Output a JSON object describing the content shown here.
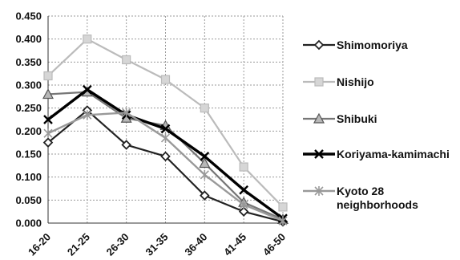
{
  "chart_data": {
    "type": "line",
    "title": "",
    "xlabel": "",
    "ylabel": "",
    "categories": [
      "16-20",
      "21-25",
      "26-30",
      "31-35",
      "36-40",
      "41-45",
      "46-50"
    ],
    "ylim": [
      0,
      0.45
    ],
    "y_ticks": [
      "0.000",
      "0.050",
      "0.100",
      "0.150",
      "0.200",
      "0.250",
      "0.300",
      "0.350",
      "0.400",
      "0.450"
    ],
    "grid": true,
    "legend_placement": "right",
    "series": [
      {
        "name": "Shimomoriya",
        "values": [
          0.175,
          0.245,
          0.17,
          0.145,
          0.06,
          0.025,
          0.003
        ],
        "color": "#222222",
        "marker": "diamond"
      },
      {
        "name": "Nishijo",
        "values": [
          0.32,
          0.4,
          0.355,
          0.312,
          0.25,
          0.122,
          0.035
        ],
        "color": "#bbbbbb",
        "marker": "square"
      },
      {
        "name": "Shibuki",
        "values": [
          0.28,
          0.285,
          0.228,
          0.212,
          0.13,
          0.045,
          0.008
        ],
        "color": "#777777",
        "marker": "triangle"
      },
      {
        "name": "Koriyama-kamimachi",
        "values": [
          0.225,
          0.29,
          0.235,
          0.205,
          0.145,
          0.072,
          0.01
        ],
        "color": "#000000",
        "marker": "x"
      },
      {
        "name": "Kyoto 28 neighborhoods",
        "values": [
          0.195,
          0.235,
          0.24,
          0.185,
          0.105,
          0.04,
          0.005
        ],
        "color": "#999999",
        "marker": "asterisk"
      }
    ]
  }
}
